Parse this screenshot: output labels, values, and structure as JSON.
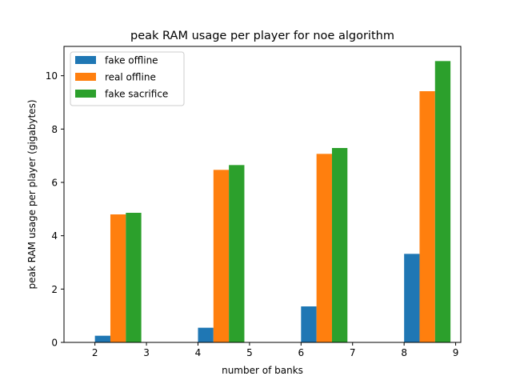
{
  "chart_data": {
    "type": "bar",
    "title": "peak RAM usage per player for noe algorithm",
    "xlabel": "number of banks",
    "ylabel": "peak RAM usage per player (gigabytes)",
    "x": [
      2,
      4,
      6,
      8
    ],
    "xticks": [
      2,
      3,
      4,
      5,
      6,
      7,
      8,
      9
    ],
    "yticks": [
      0,
      2,
      4,
      6,
      8,
      10
    ],
    "xlim": [
      1.4,
      9.1
    ],
    "ylim": [
      0,
      11.1
    ],
    "bar_width": 0.3,
    "grid": false,
    "legend_position": "upper left",
    "series": [
      {
        "name": "fake offline",
        "color": "#1f77b4",
        "values": [
          0.25,
          0.55,
          1.35,
          3.32
        ]
      },
      {
        "name": "real offline",
        "color": "#ff7f0e",
        "values": [
          4.8,
          6.47,
          7.07,
          9.42
        ]
      },
      {
        "name": "fake sacrifice",
        "color": "#2ca02c",
        "values": [
          4.86,
          6.65,
          7.29,
          10.55
        ]
      }
    ]
  }
}
